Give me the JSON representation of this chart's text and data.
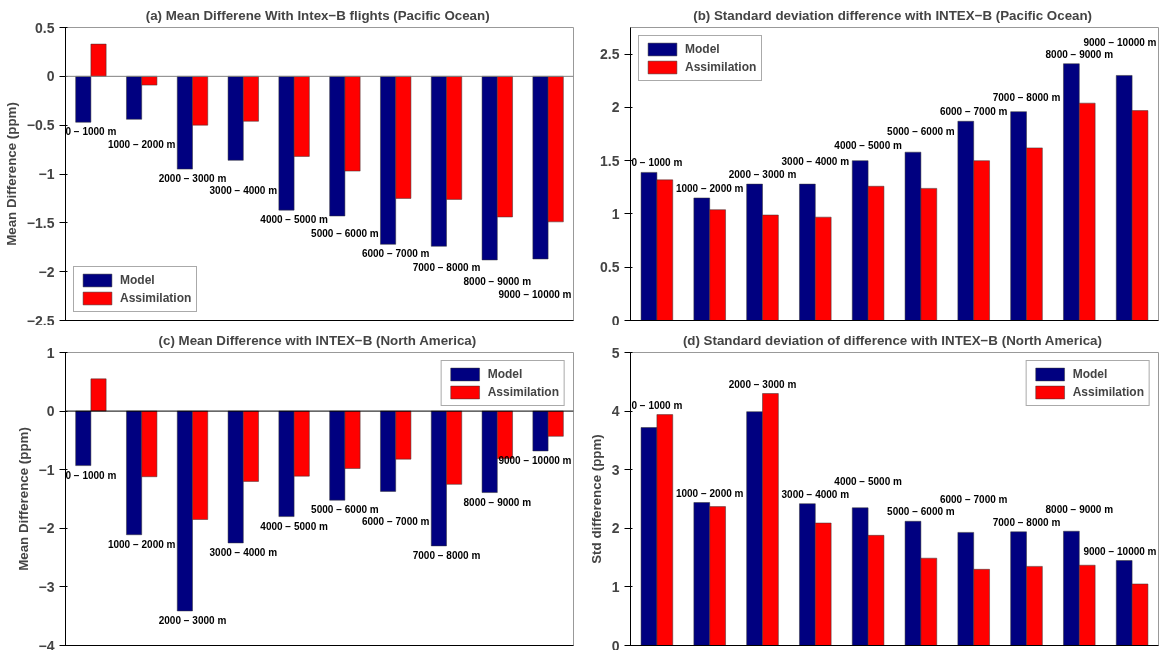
{
  "chart_data": [
    {
      "type": "bar",
      "title": "(a)  Mean Differene With Intex−B flights (Pacific Ocean)",
      "ylabel": "Mean Difference (ppm)",
      "categories": [
        "0 − 1000 m",
        "1000 − 2000 m",
        "2000 − 3000 m",
        "3000 − 4000 m",
        "4000 − 5000 m",
        "5000 − 6000 m",
        "6000 − 7000 m",
        "7000 − 8000 m",
        "8000 − 9000 m",
        "9000 − 10000 m"
      ],
      "series": [
        {
          "name": "Model",
          "color": "#000080",
          "values": [
            -0.47,
            -0.44,
            -0.95,
            -0.86,
            -1.37,
            -1.43,
            -1.72,
            -1.74,
            -1.88,
            -1.87
          ]
        },
        {
          "name": "Assimilation",
          "color": "#ff0000",
          "values": [
            0.33,
            -0.09,
            -0.5,
            -0.46,
            -0.82,
            -0.97,
            -1.25,
            -1.26,
            -1.44,
            -1.49
          ]
        }
      ],
      "ylim": [
        -2.5,
        0.5
      ],
      "yticks": [
        -2.5,
        -2,
        -1.5,
        -1,
        -0.5,
        0,
        0.5
      ],
      "ref_lines": [
        {
          "axis": "y",
          "value": 0,
          "color": "#808080"
        }
      ],
      "legend": "bottom left",
      "tick_labels": "y",
      "grid": false
    },
    {
      "type": "bar",
      "title": "(b)  Standard deviation difference with INTEX−B (Pacific Ocean)",
      "categories": [
        "0 − 1000 m",
        "1000 − 2000 m",
        "2000 − 3000 m",
        "3000 − 4000 m",
        "4000 − 5000 m",
        "5000 − 6000 m",
        "6000 − 7000 m",
        "7000 − 8000 m",
        "8000 − 9000 m",
        "9000 − 10000 m"
      ],
      "series": [
        {
          "name": "Model",
          "color": "#000080",
          "values": [
            1.39,
            1.15,
            1.28,
            1.28,
            1.5,
            1.58,
            1.87,
            1.96,
            2.41,
            2.3
          ]
        },
        {
          "name": "Assimilation",
          "color": "#ff0000",
          "values": [
            1.32,
            1.04,
            0.99,
            0.97,
            1.26,
            1.24,
            1.5,
            1.62,
            2.04,
            1.97
          ]
        }
      ],
      "ylim": [
        0,
        2.75
      ],
      "yticks": [
        0,
        0.5,
        1,
        1.5,
        2,
        2.5
      ],
      "legend": "top left",
      "tick_labels": "y",
      "grid": false
    },
    {
      "type": "bar",
      "title": "(c)  Mean Difference with INTEX−B (North America)",
      "ylabel": "Mean Difference (ppm)",
      "categories": [
        "0 − 1000 m",
        "1000 − 2000 m",
        "2000 − 3000 m",
        "3000 − 4000 m",
        "4000 − 5000 m",
        "5000 − 6000 m",
        "6000 − 7000 m",
        "7000 − 8000 m",
        "8000 − 9000 m",
        "9000 − 10000 m"
      ],
      "series": [
        {
          "name": "Model",
          "color": "#000080",
          "values": [
            -0.93,
            -2.11,
            -3.41,
            -2.25,
            -1.8,
            -1.52,
            -1.37,
            -2.3,
            -1.39,
            -0.68
          ]
        },
        {
          "name": "Assimilation",
          "color": "#ff0000",
          "values": [
            0.55,
            -1.12,
            -1.85,
            -1.2,
            -1.11,
            -0.98,
            -0.82,
            -1.25,
            -0.81,
            -0.43
          ]
        }
      ],
      "ylim": [
        -4,
        1
      ],
      "yticks": [
        -4,
        -3,
        -2,
        -1,
        0,
        1
      ],
      "ref_lines": [
        {
          "axis": "y",
          "value": 0,
          "color": "#000000"
        }
      ],
      "legend": "top right",
      "tick_labels": "y",
      "grid": false
    },
    {
      "type": "bar",
      "title": "(d)  Standard deviation of difference with INTEX−B (North America)",
      "ylabel": "Std difference (ppm)",
      "categories": [
        "0 − 1000 m",
        "1000 − 2000 m",
        "2000 − 3000 m",
        "3000 − 4000 m",
        "4000 − 5000 m",
        "5000 − 6000 m",
        "6000 − 7000 m",
        "7000 − 8000 m",
        "8000 − 9000 m",
        "9000 − 10000 m"
      ],
      "series": [
        {
          "name": "Model",
          "color": "#000080",
          "values": [
            3.72,
            2.44,
            3.99,
            2.42,
            2.35,
            2.12,
            1.93,
            1.94,
            1.95,
            1.45
          ]
        },
        {
          "name": "Assimilation",
          "color": "#ff0000",
          "values": [
            3.94,
            2.37,
            4.3,
            2.09,
            1.88,
            1.49,
            1.3,
            1.35,
            1.37,
            1.05
          ]
        }
      ],
      "ylim": [
        0,
        5
      ],
      "yticks": [
        0,
        1,
        2,
        3,
        4,
        5
      ],
      "legend": "top right",
      "tick_labels": "y",
      "grid": false
    }
  ]
}
